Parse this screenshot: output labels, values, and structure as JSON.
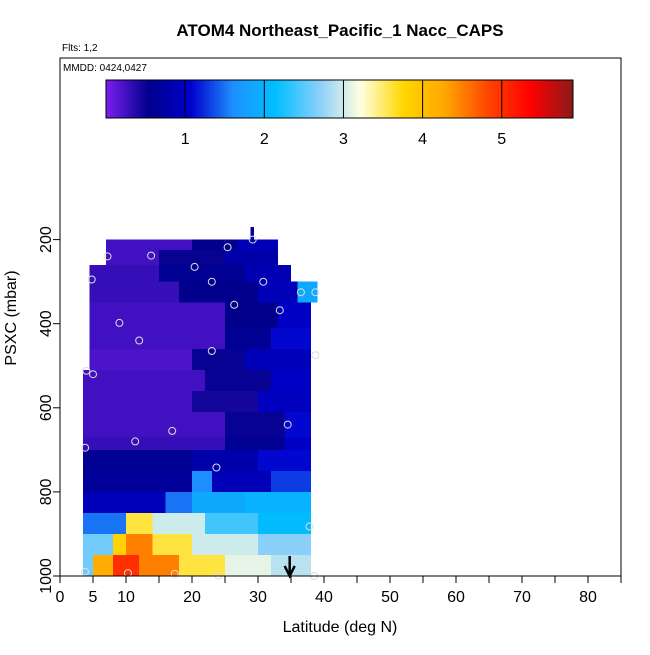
{
  "chart_data": {
    "type": "heatmap",
    "title": "ATOM4 Northeast_Pacific_1 Nacc_CAPS",
    "flights_label": "Flts: 1,2",
    "date_label": "MMDD: 0424,0427",
    "xlabel": "Latitude (deg N)",
    "ylabel": "PSXC (mbar)",
    "xlim": [
      0,
      85
    ],
    "ylim": [
      1000,
      0
    ],
    "x_ticks": [
      0,
      5,
      10,
      20,
      30,
      40,
      50,
      60,
      70,
      80
    ],
    "x_tick_labels": [
      "0",
      "5",
      "10",
      "20",
      "30",
      "40",
      "50",
      "60",
      "70",
      "80"
    ],
    "y_ticks": [
      200,
      400,
      600,
      800,
      1000
    ],
    "y_tick_labels": [
      "200",
      "400",
      "600",
      "800",
      "1000"
    ],
    "colorbar": {
      "range": [
        0,
        5.9
      ],
      "ticks": [
        1,
        2,
        3,
        4,
        5
      ],
      "tick_labels": [
        "1",
        "2",
        "3",
        "4",
        "5"
      ],
      "colors": [
        "#7a1ff0",
        "#00008b",
        "#0000cd",
        "#1e90ff",
        "#00bfff",
        "#87cefa",
        "#ffffe0",
        "#ffd700",
        "#ffa500",
        "#ff4500",
        "#ff0000",
        "#8b1a1a"
      ]
    },
    "rows": [
      {
        "p": [
          170,
          200
        ],
        "segments": [
          [
            28.9,
            29.4,
            0.7
          ]
        ]
      },
      {
        "p": [
          200,
          225
        ],
        "segments": [
          [
            7,
            20,
            0.25
          ],
          [
            20,
            27,
            0.55
          ],
          [
            27,
            33,
            0.9
          ]
        ]
      },
      {
        "p": [
          225,
          260
        ],
        "segments": [
          [
            7,
            15,
            0.25
          ],
          [
            15,
            25,
            0.5
          ],
          [
            25,
            33,
            0.8
          ]
        ]
      },
      {
        "p": [
          260,
          300
        ],
        "segments": [
          [
            4.5,
            15,
            0.3
          ],
          [
            15,
            28,
            0.6
          ],
          [
            28,
            35,
            0.85
          ]
        ]
      },
      {
        "p": [
          300,
          350
        ],
        "segments": [
          [
            4.5,
            18,
            0.3
          ],
          [
            18,
            30,
            0.55
          ],
          [
            30,
            36,
            0.9
          ],
          [
            36,
            39,
            1.9
          ]
        ]
      },
      {
        "p": [
          350,
          410
        ],
        "segments": [
          [
            4.5,
            25,
            0.25
          ],
          [
            25,
            33,
            0.55
          ],
          [
            33,
            38,
            1.0
          ]
        ]
      },
      {
        "p": [
          410,
          460
        ],
        "segments": [
          [
            4.5,
            25,
            0.25
          ],
          [
            25,
            32,
            0.6
          ],
          [
            32,
            38,
            1.1
          ]
        ]
      },
      {
        "p": [
          460,
          510
        ],
        "segments": [
          [
            4.5,
            20,
            0.2
          ],
          [
            20,
            28,
            0.5
          ],
          [
            28,
            38,
            0.9
          ]
        ]
      },
      {
        "p": [
          510,
          560
        ],
        "segments": [
          [
            3.5,
            22,
            0.25
          ],
          [
            22,
            32,
            0.5
          ],
          [
            32,
            38,
            1.0
          ]
        ]
      },
      {
        "p": [
          560,
          610
        ],
        "segments": [
          [
            3.5,
            20,
            0.25
          ],
          [
            20,
            30,
            0.45
          ],
          [
            30,
            38,
            0.95
          ]
        ]
      },
      {
        "p": [
          610,
          670
        ],
        "segments": [
          [
            3.5,
            25,
            0.25
          ],
          [
            25,
            34,
            0.5
          ],
          [
            34,
            38,
            1.1
          ]
        ]
      },
      {
        "p": [
          670,
          700
        ],
        "segments": [
          [
            3.5,
            25,
            0.3
          ],
          [
            25,
            34,
            0.6
          ],
          [
            34,
            38,
            1.0
          ]
        ]
      },
      {
        "p": [
          700,
          750
        ],
        "segments": [
          [
            3.5,
            20,
            0.6
          ],
          [
            20,
            30,
            0.8
          ],
          [
            30,
            38,
            1.1
          ]
        ]
      },
      {
        "p": [
          750,
          800
        ],
        "segments": [
          [
            3.5,
            20,
            0.65
          ],
          [
            20,
            23,
            1.6
          ],
          [
            23,
            32,
            0.9
          ],
          [
            32,
            38,
            1.3
          ]
        ]
      },
      {
        "p": [
          800,
          850
        ],
        "segments": [
          [
            3.5,
            16,
            0.9
          ],
          [
            16,
            20,
            1.5
          ],
          [
            20,
            28,
            1.9
          ],
          [
            28,
            38,
            2.0
          ]
        ]
      },
      {
        "p": [
          850,
          900
        ],
        "segments": [
          [
            3.5,
            10,
            1.5
          ],
          [
            10,
            14,
            3.6
          ],
          [
            14,
            22,
            3.0
          ],
          [
            22,
            30,
            2.4
          ],
          [
            30,
            38,
            2.1
          ]
        ]
      },
      {
        "p": [
          900,
          950
        ],
        "segments": [
          [
            3.5,
            8,
            2.6
          ],
          [
            8,
            10,
            3.8
          ],
          [
            10,
            14,
            4.5
          ],
          [
            14,
            20,
            3.6
          ],
          [
            20,
            30,
            3.0
          ],
          [
            30,
            38,
            2.7
          ]
        ]
      },
      {
        "p": [
          950,
          1000
        ],
        "segments": [
          [
            3.5,
            5,
            2.6
          ],
          [
            5,
            8,
            4.2
          ],
          [
            8,
            12,
            5.0
          ],
          [
            12,
            18,
            4.5
          ],
          [
            18,
            25,
            3.6
          ],
          [
            25,
            32,
            3.1
          ],
          [
            32,
            38,
            2.9
          ]
        ]
      }
    ],
    "sample_points": [
      [
        7.2,
        240
      ],
      [
        13.8,
        238
      ],
      [
        25.4,
        218
      ],
      [
        29.2,
        200
      ],
      [
        20.4,
        265
      ],
      [
        4.8,
        295
      ],
      [
        23,
        300
      ],
      [
        30.8,
        300
      ],
      [
        36.5,
        325
      ],
      [
        38.7,
        325
      ],
      [
        26.4,
        355
      ],
      [
        33.3,
        368
      ],
      [
        9,
        398
      ],
      [
        12,
        440
      ],
      [
        23,
        465
      ],
      [
        38.7,
        475
      ],
      [
        4,
        512
      ],
      [
        5,
        520
      ],
      [
        17,
        655
      ],
      [
        34.5,
        640
      ],
      [
        11.4,
        680
      ],
      [
        3.8,
        695
      ],
      [
        23.7,
        742
      ],
      [
        37.8,
        882
      ],
      [
        3.8,
        990
      ],
      [
        10.3,
        993
      ],
      [
        17.4,
        995
      ],
      [
        24,
        999
      ],
      [
        38.5,
        1000
      ]
    ],
    "arrow_lat": 34.8
  }
}
